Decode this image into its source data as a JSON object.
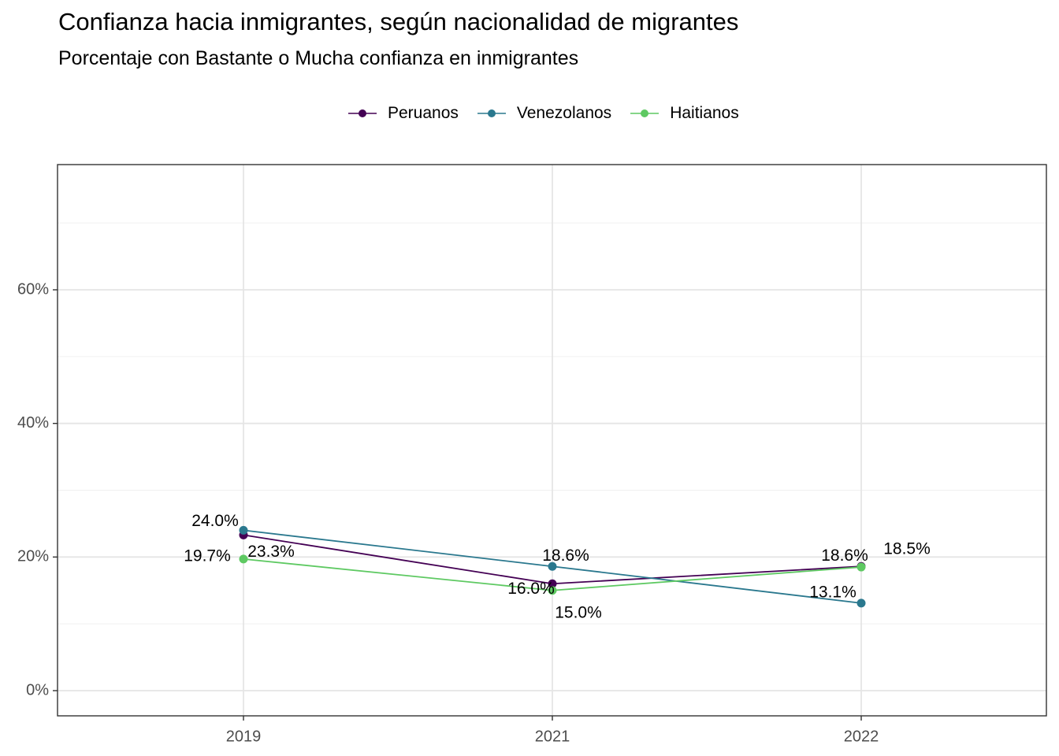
{
  "chart_data": {
    "type": "line",
    "title": "Confianza hacia inmigrantes, según nacionalidad de migrantes",
    "subtitle": "Porcentaje con Bastante o Mucha confianza en inmigrantes",
    "xlabel": "",
    "ylabel": "",
    "categories": [
      "2019",
      "2021",
      "2022"
    ],
    "ylim": [
      -3.7,
      78.5
    ],
    "yticks": [
      0,
      20,
      40,
      60
    ],
    "ytick_labels": [
      "0%",
      "20%",
      "40%",
      "60%"
    ],
    "grid": true,
    "legend_position": "top",
    "series": [
      {
        "name": "Peruanos",
        "color": "#440154",
        "values": [
          23.3,
          16.0,
          18.6
        ],
        "labels": [
          "23.3%",
          "16.0%",
          "18.6%"
        ]
      },
      {
        "name": "Venezolanos",
        "color": "#2A788E",
        "values": [
          24.0,
          18.6,
          13.1
        ],
        "labels": [
          "24.0%",
          "18.6%",
          "13.1%"
        ]
      },
      {
        "name": "Haitianos",
        "color": "#5EC962",
        "values": [
          19.7,
          15.0,
          18.5
        ],
        "labels": [
          "19.7%",
          "15.0%",
          "18.5%"
        ]
      }
    ]
  }
}
